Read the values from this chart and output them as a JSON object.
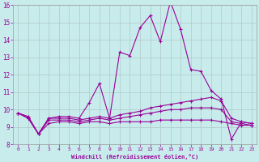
{
  "xlabel": "Windchill (Refroidissement éolien,°C)",
  "xlim": [
    -0.5,
    23.5
  ],
  "ylim": [
    8,
    16
  ],
  "yticks": [
    8,
    9,
    10,
    11,
    12,
    13,
    14,
    15,
    16
  ],
  "xticks": [
    0,
    1,
    2,
    3,
    4,
    5,
    6,
    7,
    8,
    9,
    10,
    11,
    12,
    13,
    14,
    15,
    16,
    17,
    18,
    19,
    20,
    21,
    22,
    23
  ],
  "background_color": "#c8ecec",
  "line_color": "#990099",
  "grid_color": "#b0c8c8",
  "series": [
    [
      9.8,
      9.6,
      8.6,
      9.5,
      9.6,
      9.6,
      9.5,
      10.4,
      11.5,
      9.5,
      13.3,
      13.1,
      14.7,
      15.4,
      13.9,
      16.2,
      14.6,
      12.3,
      12.2,
      11.1,
      10.6,
      8.3,
      9.3,
      9.2
    ],
    [
      9.8,
      9.5,
      8.6,
      9.5,
      9.5,
      9.5,
      9.4,
      9.5,
      9.6,
      9.5,
      9.7,
      9.8,
      9.9,
      10.1,
      10.2,
      10.3,
      10.4,
      10.5,
      10.6,
      10.7,
      10.5,
      9.5,
      9.3,
      9.2
    ],
    [
      9.8,
      9.5,
      8.6,
      9.4,
      9.4,
      9.4,
      9.3,
      9.4,
      9.5,
      9.4,
      9.5,
      9.6,
      9.7,
      9.8,
      9.9,
      10.0,
      10.0,
      10.1,
      10.1,
      10.1,
      10.0,
      9.3,
      9.2,
      9.1
    ],
    [
      9.8,
      9.5,
      8.6,
      9.2,
      9.3,
      9.3,
      9.2,
      9.3,
      9.3,
      9.2,
      9.3,
      9.3,
      9.3,
      9.3,
      9.4,
      9.4,
      9.4,
      9.4,
      9.4,
      9.4,
      9.3,
      9.2,
      9.1,
      9.1
    ]
  ]
}
